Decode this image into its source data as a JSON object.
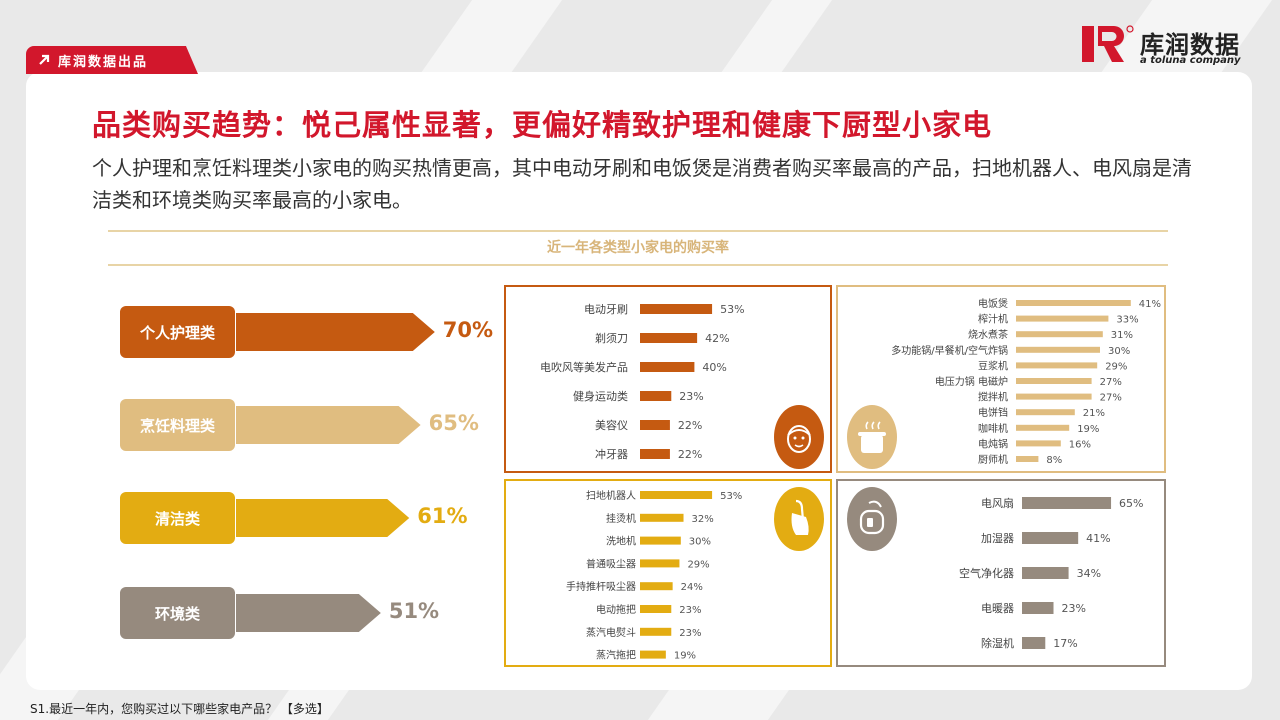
{
  "header": {
    "tag_label": "库润数据出品",
    "logo_text": "库润数据",
    "logo_sub": "a toluna company",
    "title": "品类购买趋势：悦己属性显著，更偏好精致护理和健康下厨型小家电",
    "subtitle": "个人护理和烹饪料理类小家电的购买热情更高，其中电动牙刷和电饭煲是消费者购买率最高的产品，扫地机器人、电风扇是清洁类和环境类购买率最高的小家电。"
  },
  "footnote": "S1.最近一年内，您购买过以下哪些家电产品？ 【多选】",
  "colors": {
    "brand_red": "#d2172c",
    "personal": "#c55a11",
    "cooking": "#e0bd80",
    "cleaning": "#e3ac12",
    "environment": "#968a7e"
  },
  "chart_data": [
    {
      "type": "bar",
      "title": "近一年各类型小家电的购买率",
      "categories": [
        "个人护理类",
        "烹饪料理类",
        "清洁类",
        "环境类"
      ],
      "values": [
        70,
        65,
        61,
        51
      ],
      "labels": [
        "70%",
        "65%",
        "61%",
        "51%"
      ],
      "icons": []
    },
    {
      "type": "bar",
      "group": "个人护理类",
      "categories": [
        "电动牙刷",
        "剃须刀",
        "电吹风等美发产品",
        "健身运动类",
        "美容仪",
        "冲牙器"
      ],
      "values": [
        53,
        42,
        40,
        23,
        22,
        22
      ],
      "labels": [
        "53%",
        "42%",
        "40%",
        "23%",
        "22%",
        "22%"
      ],
      "icon": "face-mask-icon"
    },
    {
      "type": "bar",
      "group": "烹饪料理类",
      "categories": [
        "电饭煲",
        "榨汁机",
        "烧水煮茶",
        "多功能锅/早餐机/空气炸锅",
        "豆浆机",
        "电压力锅 电磁炉",
        "搅拌机",
        "电饼铛",
        "咖啡机",
        "电炖锅",
        "厨师机"
      ],
      "values": [
        41,
        33,
        31,
        30,
        29,
        27,
        27,
        21,
        19,
        16,
        8
      ],
      "labels": [
        "41%",
        "33%",
        "31%",
        "30%",
        "29%",
        "27%",
        "27%",
        "21%",
        "19%",
        "16%",
        "8%"
      ],
      "icon": "cooking-pot-icon"
    },
    {
      "type": "bar",
      "group": "清洁类",
      "categories": [
        "扫地机器人",
        "挂烫机",
        "洗地机",
        "普通吸尘器",
        "手持推杆吸尘器",
        "电动拖把",
        "蒸汽电熨斗",
        "蒸汽拖把"
      ],
      "values": [
        53,
        32,
        30,
        29,
        24,
        23,
        23,
        19
      ],
      "labels": [
        "53%",
        "32%",
        "30%",
        "29%",
        "24%",
        "23%",
        "23%",
        "19%"
      ],
      "icon": "vacuum-cleaner-icon"
    },
    {
      "type": "bar",
      "group": "环境类",
      "categories": [
        "电风扇",
        "加湿器",
        "空气净化器",
        "电暖器",
        "除湿机"
      ],
      "values": [
        65,
        41,
        34,
        23,
        17
      ],
      "labels": [
        "65%",
        "41%",
        "34%",
        "23%",
        "17%"
      ],
      "icon": "canister-vacuum-icon"
    }
  ]
}
